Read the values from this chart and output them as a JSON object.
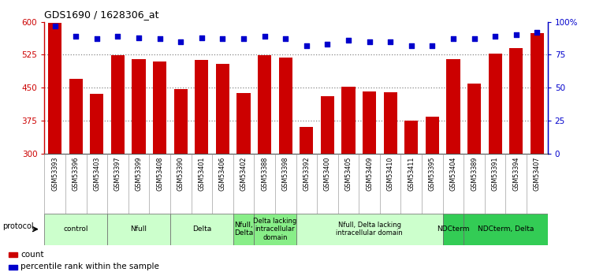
{
  "title": "GDS1690 / 1628306_at",
  "samples": [
    "GSM53393",
    "GSM53396",
    "GSM53403",
    "GSM53397",
    "GSM53399",
    "GSM53408",
    "GSM53390",
    "GSM53401",
    "GSM53406",
    "GSM53402",
    "GSM53388",
    "GSM53398",
    "GSM53392",
    "GSM53400",
    "GSM53405",
    "GSM53409",
    "GSM53410",
    "GSM53411",
    "GSM53395",
    "GSM53404",
    "GSM53389",
    "GSM53391",
    "GSM53394",
    "GSM53407"
  ],
  "counts": [
    598,
    470,
    437,
    524,
    515,
    510,
    447,
    513,
    505,
    438,
    524,
    518,
    360,
    430,
    452,
    442,
    440,
    375,
    385,
    515,
    460,
    527,
    540,
    575
  ],
  "percentiles": [
    97,
    89,
    87,
    89,
    88,
    87,
    85,
    88,
    87,
    87,
    89,
    87,
    82,
    83,
    86,
    85,
    85,
    82,
    82,
    87,
    87,
    89,
    90,
    92
  ],
  "ylim_left": [
    300,
    600
  ],
  "ylim_right": [
    0,
    100
  ],
  "yticks_left": [
    300,
    375,
    450,
    525,
    600
  ],
  "yticks_right": [
    0,
    25,
    50,
    75,
    100
  ],
  "bar_color": "#cc0000",
  "dot_color": "#0000cc",
  "groups": [
    {
      "label": "control",
      "start": 0,
      "end": 2,
      "color": "#ccffcc"
    },
    {
      "label": "Nfull",
      "start": 3,
      "end": 5,
      "color": "#ccffcc"
    },
    {
      "label": "Delta",
      "start": 6,
      "end": 8,
      "color": "#ccffcc"
    },
    {
      "label": "Nfull,\nDelta",
      "start": 9,
      "end": 9,
      "color": "#88ee88"
    },
    {
      "label": "Delta lacking\nintracellular\ndomain",
      "start": 10,
      "end": 11,
      "color": "#88ee88"
    },
    {
      "label": "Nfull, Delta lacking\nintracellular domain",
      "start": 12,
      "end": 18,
      "color": "#ccffcc"
    },
    {
      "label": "NDCterm",
      "start": 19,
      "end": 19,
      "color": "#33cc55"
    },
    {
      "label": "NDCterm, Delta",
      "start": 20,
      "end": 23,
      "color": "#33cc55"
    }
  ],
  "sample_bg": "#cccccc",
  "bg_color": "#ffffff",
  "grid_color": "#888888",
  "tick_label_color_left": "#cc0000",
  "tick_label_color_right": "#0000cc"
}
